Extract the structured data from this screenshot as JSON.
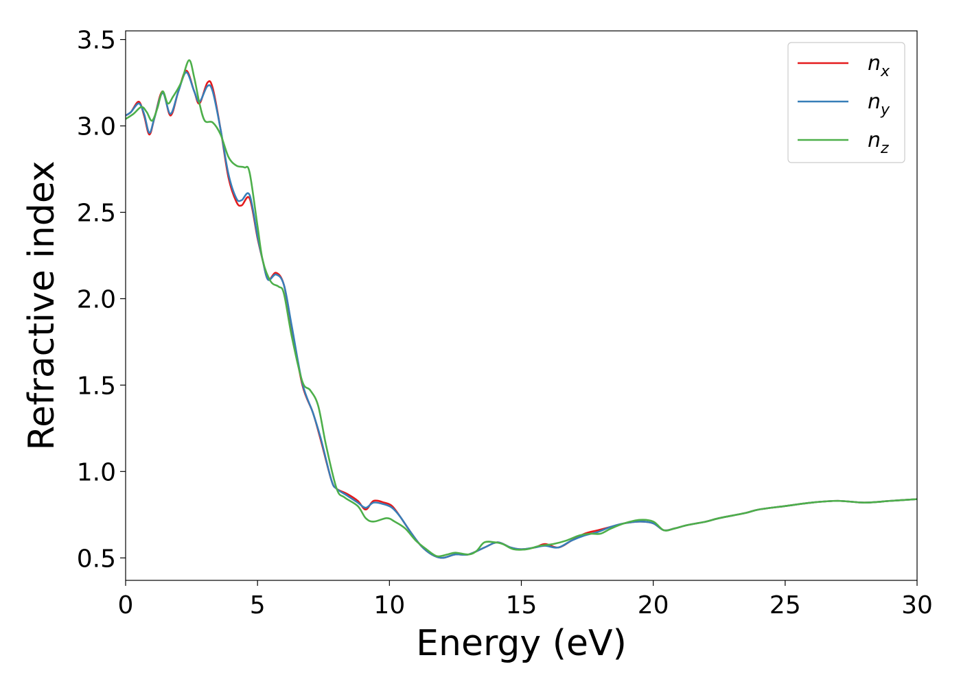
{
  "chart_data": {
    "type": "line",
    "xlabel": "Energy (eV)",
    "ylabel": "Refractive index",
    "xlim": [
      0,
      30
    ],
    "ylim": [
      0.37,
      3.55
    ],
    "x_ticks": [
      0,
      5,
      10,
      15,
      20,
      25,
      30
    ],
    "x_tick_labels": [
      "0",
      "5",
      "10",
      "15",
      "20",
      "25",
      "30"
    ],
    "y_ticks": [
      0.5,
      1.0,
      1.5,
      2.0,
      2.5,
      3.0,
      3.5
    ],
    "y_tick_labels": [
      "0.5",
      "1.0",
      "1.5",
      "2.0",
      "2.5",
      "3.0",
      "3.5"
    ],
    "grid": false,
    "legend_position": "top-right",
    "series": [
      {
        "name": "n_x",
        "legend_base": "n",
        "legend_sub": "x",
        "color": "#e41a1c",
        "points": [
          [
            0,
            3.06
          ],
          [
            0.2,
            3.08
          ],
          [
            0.5,
            3.14
          ],
          [
            0.7,
            3.06
          ],
          [
            0.9,
            2.95
          ],
          [
            1.1,
            3.05
          ],
          [
            1.4,
            3.2
          ],
          [
            1.7,
            3.06
          ],
          [
            2.0,
            3.2
          ],
          [
            2.3,
            3.32
          ],
          [
            2.6,
            3.2
          ],
          [
            2.8,
            3.13
          ],
          [
            3.1,
            3.25
          ],
          [
            3.3,
            3.22
          ],
          [
            3.6,
            2.98
          ],
          [
            3.9,
            2.7
          ],
          [
            4.2,
            2.56
          ],
          [
            4.4,
            2.54
          ],
          [
            4.7,
            2.58
          ],
          [
            5.0,
            2.35
          ],
          [
            5.2,
            2.22
          ],
          [
            5.4,
            2.11
          ],
          [
            5.7,
            2.15
          ],
          [
            6.0,
            2.08
          ],
          [
            6.3,
            1.83
          ],
          [
            6.7,
            1.5
          ],
          [
            7.1,
            1.34
          ],
          [
            7.4,
            1.18
          ],
          [
            7.8,
            0.95
          ],
          [
            8.0,
            0.9
          ],
          [
            8.4,
            0.87
          ],
          [
            8.8,
            0.83
          ],
          [
            9.1,
            0.78
          ],
          [
            9.4,
            0.83
          ],
          [
            9.8,
            0.82
          ],
          [
            10.1,
            0.8
          ],
          [
            10.4,
            0.74
          ],
          [
            10.8,
            0.65
          ],
          [
            11.2,
            0.57
          ],
          [
            11.6,
            0.52
          ],
          [
            12.0,
            0.5
          ],
          [
            12.5,
            0.52
          ],
          [
            13.0,
            0.52
          ],
          [
            13.6,
            0.56
          ],
          [
            14.1,
            0.59
          ],
          [
            14.6,
            0.56
          ],
          [
            15.0,
            0.55
          ],
          [
            15.5,
            0.56
          ],
          [
            15.9,
            0.58
          ],
          [
            16.4,
            0.56
          ],
          [
            16.9,
            0.6
          ],
          [
            17.4,
            0.64
          ],
          [
            17.9,
            0.66
          ],
          [
            18.4,
            0.68
          ],
          [
            18.9,
            0.7
          ],
          [
            19.5,
            0.71
          ],
          [
            20.0,
            0.7
          ],
          [
            20.4,
            0.66
          ],
          [
            20.8,
            0.67
          ],
          [
            21.3,
            0.69
          ],
          [
            22.0,
            0.71
          ],
          [
            22.5,
            0.73
          ],
          [
            23.5,
            0.76
          ],
          [
            24.0,
            0.78
          ],
          [
            25.0,
            0.8
          ],
          [
            26.0,
            0.82
          ],
          [
            27.0,
            0.83
          ],
          [
            28.0,
            0.82
          ],
          [
            29.0,
            0.83
          ],
          [
            30.0,
            0.84
          ]
        ]
      },
      {
        "name": "n_y",
        "legend_base": "n",
        "legend_sub": "y",
        "color": "#377eb8",
        "points": [
          [
            0,
            3.06
          ],
          [
            0.2,
            3.08
          ],
          [
            0.5,
            3.13
          ],
          [
            0.7,
            3.07
          ],
          [
            0.9,
            2.96
          ],
          [
            1.1,
            3.05
          ],
          [
            1.4,
            3.19
          ],
          [
            1.7,
            3.07
          ],
          [
            2.0,
            3.2
          ],
          [
            2.3,
            3.31
          ],
          [
            2.6,
            3.2
          ],
          [
            2.8,
            3.14
          ],
          [
            3.1,
            3.23
          ],
          [
            3.3,
            3.2
          ],
          [
            3.6,
            2.98
          ],
          [
            3.9,
            2.72
          ],
          [
            4.2,
            2.58
          ],
          [
            4.4,
            2.57
          ],
          [
            4.7,
            2.6
          ],
          [
            5.0,
            2.36
          ],
          [
            5.2,
            2.22
          ],
          [
            5.4,
            2.11
          ],
          [
            5.7,
            2.14
          ],
          [
            6.0,
            2.08
          ],
          [
            6.3,
            1.84
          ],
          [
            6.7,
            1.51
          ],
          [
            7.1,
            1.34
          ],
          [
            7.4,
            1.19
          ],
          [
            7.8,
            0.95
          ],
          [
            8.0,
            0.9
          ],
          [
            8.4,
            0.86
          ],
          [
            8.8,
            0.82
          ],
          [
            9.1,
            0.79
          ],
          [
            9.4,
            0.82
          ],
          [
            9.8,
            0.81
          ],
          [
            10.1,
            0.79
          ],
          [
            10.4,
            0.74
          ],
          [
            10.8,
            0.65
          ],
          [
            11.2,
            0.57
          ],
          [
            11.6,
            0.52
          ],
          [
            12.0,
            0.5
          ],
          [
            12.5,
            0.52
          ],
          [
            13.0,
            0.52
          ],
          [
            13.6,
            0.56
          ],
          [
            14.1,
            0.59
          ],
          [
            14.6,
            0.56
          ],
          [
            15.0,
            0.55
          ],
          [
            15.5,
            0.56
          ],
          [
            15.9,
            0.57
          ],
          [
            16.4,
            0.56
          ],
          [
            16.9,
            0.6
          ],
          [
            17.4,
            0.63
          ],
          [
            17.9,
            0.65
          ],
          [
            18.4,
            0.68
          ],
          [
            18.9,
            0.7
          ],
          [
            19.5,
            0.71
          ],
          [
            20.0,
            0.7
          ],
          [
            20.4,
            0.66
          ],
          [
            20.8,
            0.67
          ],
          [
            21.3,
            0.69
          ],
          [
            22.0,
            0.71
          ],
          [
            22.5,
            0.73
          ],
          [
            23.5,
            0.76
          ],
          [
            24.0,
            0.78
          ],
          [
            25.0,
            0.8
          ],
          [
            26.0,
            0.82
          ],
          [
            27.0,
            0.83
          ],
          [
            28.0,
            0.82
          ],
          [
            29.0,
            0.83
          ],
          [
            30.0,
            0.84
          ]
        ]
      },
      {
        "name": "n_z",
        "legend_base": "n",
        "legend_sub": "z",
        "color": "#4daf4a",
        "points": [
          [
            0,
            3.04
          ],
          [
            0.3,
            3.07
          ],
          [
            0.6,
            3.11
          ],
          [
            0.8,
            3.08
          ],
          [
            1.0,
            3.03
          ],
          [
            1.2,
            3.1
          ],
          [
            1.4,
            3.2
          ],
          [
            1.6,
            3.13
          ],
          [
            1.8,
            3.17
          ],
          [
            2.1,
            3.25
          ],
          [
            2.4,
            3.38
          ],
          [
            2.6,
            3.28
          ],
          [
            2.8,
            3.13
          ],
          [
            3.0,
            3.03
          ],
          [
            3.3,
            3.02
          ],
          [
            3.6,
            2.95
          ],
          [
            3.9,
            2.82
          ],
          [
            4.2,
            2.77
          ],
          [
            4.5,
            2.76
          ],
          [
            4.7,
            2.73
          ],
          [
            5.0,
            2.42
          ],
          [
            5.2,
            2.22
          ],
          [
            5.5,
            2.1
          ],
          [
            5.8,
            2.07
          ],
          [
            6.0,
            2.03
          ],
          [
            6.3,
            1.78
          ],
          [
            6.7,
            1.52
          ],
          [
            7.0,
            1.47
          ],
          [
            7.3,
            1.38
          ],
          [
            7.6,
            1.15
          ],
          [
            8.0,
            0.9
          ],
          [
            8.3,
            0.85
          ],
          [
            8.8,
            0.8
          ],
          [
            9.1,
            0.73
          ],
          [
            9.4,
            0.71
          ],
          [
            9.9,
            0.73
          ],
          [
            10.2,
            0.71
          ],
          [
            10.6,
            0.67
          ],
          [
            11.0,
            0.6
          ],
          [
            11.4,
            0.55
          ],
          [
            11.8,
            0.51
          ],
          [
            12.2,
            0.52
          ],
          [
            12.5,
            0.53
          ],
          [
            13.0,
            0.52
          ],
          [
            13.3,
            0.54
          ],
          [
            13.6,
            0.59
          ],
          [
            14.0,
            0.59
          ],
          [
            14.3,
            0.58
          ],
          [
            14.7,
            0.55
          ],
          [
            15.2,
            0.55
          ],
          [
            15.7,
            0.57
          ],
          [
            16.2,
            0.58
          ],
          [
            16.7,
            0.6
          ],
          [
            17.2,
            0.63
          ],
          [
            17.6,
            0.64
          ],
          [
            18.0,
            0.64
          ],
          [
            18.4,
            0.67
          ],
          [
            18.9,
            0.7
          ],
          [
            19.5,
            0.72
          ],
          [
            20.0,
            0.71
          ],
          [
            20.4,
            0.66
          ],
          [
            20.8,
            0.67
          ],
          [
            21.3,
            0.69
          ],
          [
            22.0,
            0.71
          ],
          [
            22.5,
            0.73
          ],
          [
            23.5,
            0.76
          ],
          [
            24.0,
            0.78
          ],
          [
            25.0,
            0.8
          ],
          [
            26.0,
            0.82
          ],
          [
            27.0,
            0.83
          ],
          [
            28.0,
            0.82
          ],
          [
            29.0,
            0.83
          ],
          [
            30.0,
            0.84
          ]
        ]
      }
    ]
  }
}
